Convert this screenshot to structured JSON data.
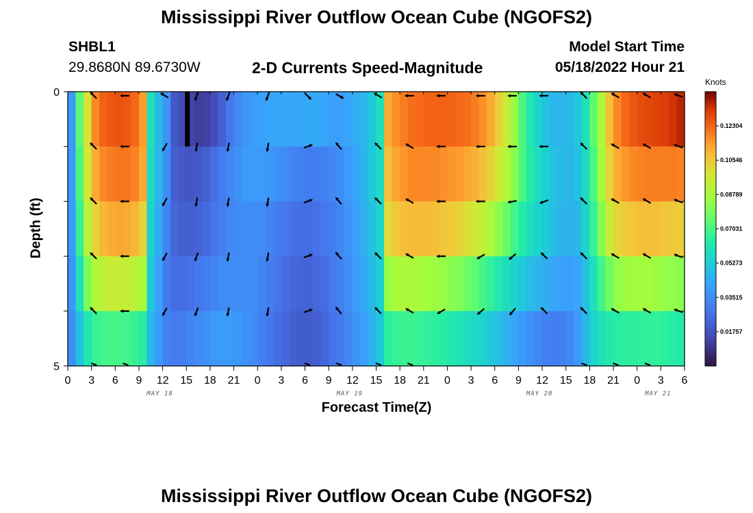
{
  "page_title": "Mississippi River Outflow Ocean Cube (NGOFS2)",
  "station": {
    "id": "SHBL1",
    "coords": "29.8680N  89.6730W"
  },
  "model_start": {
    "label": "Model Start Time",
    "value": "05/18/2022 Hour 21"
  },
  "bottom_title": "Mississippi River Outflow Ocean Cube (NGOFS2)",
  "colorbar": {
    "unit": "Knots",
    "ticks": [
      "0.12304",
      "0.10546",
      "0.08789",
      "0.07031",
      "0.05273",
      "0.03515",
      "0.01757"
    ],
    "tick_values": [
      0.12304,
      0.10546,
      0.08789,
      0.07031,
      0.05273,
      0.03515,
      0.01757
    ],
    "min": 0.0,
    "max": 0.1406
  },
  "chart_data": {
    "type": "heatmap",
    "title": "2-D Currents Speed-Magnitude",
    "xlabel": "Forecast Time(Z)",
    "ylabel": "Depth (ft)",
    "x_tick_labels": [
      "0",
      "3",
      "6",
      "9",
      "12",
      "15",
      "18",
      "21",
      "0",
      "3",
      "6",
      "9",
      "12",
      "15",
      "18",
      "21",
      "0",
      "3",
      "6",
      "9",
      "12",
      "15",
      "18",
      "21",
      "0",
      "3",
      "6"
    ],
    "date_labels": [
      {
        "text": "MAY 18",
        "tick_index": 4
      },
      {
        "text": "MAY 19",
        "tick_index": 12
      },
      {
        "text": "MAY 20",
        "tick_index": 20
      },
      {
        "text": "MAY 21",
        "tick_index": 25
      }
    ],
    "y_tick_labels": [
      "0",
      "",
      "",
      "",
      "",
      "5"
    ],
    "ylim": [
      0,
      5
    ],
    "xlim_hours": [
      0,
      78
    ],
    "depth_levels": 5,
    "time_steps": 78,
    "speed_knots_keyframes": {
      "hours": [
        0,
        1,
        2,
        3,
        4,
        5,
        6,
        7,
        8,
        9,
        10,
        11,
        12,
        13,
        14,
        15,
        16,
        17,
        18,
        19,
        20,
        21,
        22,
        23,
        24,
        25,
        26,
        27,
        28,
        29,
        30,
        31,
        32,
        33,
        34,
        35,
        36,
        37,
        38,
        39,
        40,
        41,
        42,
        43,
        44,
        45,
        46,
        47,
        48,
        49,
        50,
        51,
        52,
        53,
        54,
        55,
        56,
        57,
        58,
        59,
        60,
        61,
        62,
        63,
        64,
        65,
        66,
        67,
        68,
        69,
        70,
        71,
        72,
        73,
        74,
        75,
        76,
        77
      ],
      "layers": [
        [
          0.04,
          0.075,
          0.1,
          0.118,
          0.124,
          0.126,
          0.127,
          0.126,
          0.123,
          0.115,
          0.06,
          0.048,
          0.038,
          0.02,
          0.016,
          0.014,
          0.012,
          0.013,
          0.017,
          0.022,
          0.028,
          0.034,
          0.038,
          0.04,
          0.042,
          0.043,
          0.043,
          0.044,
          0.043,
          0.043,
          0.044,
          0.044,
          0.043,
          0.042,
          0.041,
          0.043,
          0.045,
          0.047,
          0.052,
          0.06,
          0.112,
          0.117,
          0.12,
          0.122,
          0.123,
          0.124,
          0.124,
          0.124,
          0.124,
          0.123,
          0.122,
          0.12,
          0.117,
          0.112,
          0.105,
          0.096,
          0.085,
          0.072,
          0.062,
          0.055,
          0.05,
          0.047,
          0.047,
          0.048,
          0.052,
          0.06,
          0.075,
          0.09,
          0.108,
          0.118,
          0.123,
          0.126,
          0.128,
          0.129,
          0.13,
          0.131,
          0.133,
          0.135
        ],
        [
          0.04,
          0.072,
          0.098,
          0.112,
          0.118,
          0.12,
          0.121,
          0.121,
          0.119,
          0.113,
          0.058,
          0.047,
          0.036,
          0.022,
          0.02,
          0.019,
          0.02,
          0.022,
          0.026,
          0.03,
          0.034,
          0.037,
          0.039,
          0.04,
          0.04,
          0.039,
          0.037,
          0.035,
          0.033,
          0.032,
          0.031,
          0.031,
          0.032,
          0.034,
          0.036,
          0.04,
          0.043,
          0.047,
          0.052,
          0.058,
          0.108,
          0.113,
          0.116,
          0.118,
          0.118,
          0.118,
          0.118,
          0.117,
          0.116,
          0.115,
          0.113,
          0.111,
          0.108,
          0.104,
          0.098,
          0.091,
          0.082,
          0.072,
          0.064,
          0.058,
          0.054,
          0.05,
          0.048,
          0.047,
          0.05,
          0.058,
          0.072,
          0.088,
          0.104,
          0.112,
          0.116,
          0.118,
          0.119,
          0.12,
          0.12,
          0.12,
          0.12,
          0.119
        ],
        [
          0.04,
          0.068,
          0.092,
          0.104,
          0.11,
          0.112,
          0.113,
          0.112,
          0.11,
          0.104,
          0.055,
          0.045,
          0.033,
          0.024,
          0.022,
          0.022,
          0.023,
          0.025,
          0.028,
          0.031,
          0.034,
          0.035,
          0.036,
          0.036,
          0.035,
          0.033,
          0.031,
          0.029,
          0.027,
          0.026,
          0.026,
          0.027,
          0.029,
          0.031,
          0.034,
          0.038,
          0.042,
          0.046,
          0.05,
          0.056,
          0.102,
          0.106,
          0.108,
          0.109,
          0.109,
          0.109,
          0.108,
          0.107,
          0.106,
          0.104,
          0.101,
          0.098,
          0.094,
          0.089,
          0.083,
          0.077,
          0.07,
          0.064,
          0.059,
          0.055,
          0.052,
          0.049,
          0.047,
          0.046,
          0.048,
          0.056,
          0.068,
          0.082,
          0.096,
          0.103,
          0.106,
          0.107,
          0.108,
          0.108,
          0.108,
          0.107,
          0.106,
          0.105
        ],
        [
          0.038,
          0.06,
          0.08,
          0.09,
          0.094,
          0.096,
          0.096,
          0.095,
          0.093,
          0.088,
          0.052,
          0.042,
          0.03,
          0.026,
          0.026,
          0.027,
          0.029,
          0.031,
          0.033,
          0.035,
          0.036,
          0.036,
          0.036,
          0.035,
          0.033,
          0.031,
          0.028,
          0.026,
          0.024,
          0.023,
          0.023,
          0.024,
          0.026,
          0.029,
          0.032,
          0.036,
          0.04,
          0.044,
          0.048,
          0.054,
          0.085,
          0.088,
          0.089,
          0.089,
          0.088,
          0.087,
          0.086,
          0.085,
          0.083,
          0.081,
          0.078,
          0.075,
          0.071,
          0.067,
          0.063,
          0.059,
          0.055,
          0.052,
          0.049,
          0.047,
          0.045,
          0.043,
          0.042,
          0.041,
          0.043,
          0.05,
          0.06,
          0.07,
          0.079,
          0.084,
          0.086,
          0.087,
          0.087,
          0.087,
          0.086,
          0.085,
          0.084,
          0.083
        ],
        [
          0.036,
          0.05,
          0.062,
          0.068,
          0.07,
          0.071,
          0.071,
          0.07,
          0.068,
          0.065,
          0.048,
          0.04,
          0.032,
          0.03,
          0.031,
          0.033,
          0.035,
          0.037,
          0.039,
          0.04,
          0.04,
          0.039,
          0.037,
          0.035,
          0.032,
          0.029,
          0.026,
          0.024,
          0.022,
          0.021,
          0.021,
          0.022,
          0.024,
          0.027,
          0.03,
          0.034,
          0.038,
          0.042,
          0.046,
          0.052,
          0.066,
          0.068,
          0.069,
          0.069,
          0.068,
          0.067,
          0.066,
          0.065,
          0.063,
          0.061,
          0.059,
          0.057,
          0.055,
          0.052,
          0.049,
          0.046,
          0.043,
          0.04,
          0.037,
          0.034,
          0.032,
          0.031,
          0.032,
          0.034,
          0.04,
          0.048,
          0.055,
          0.06,
          0.063,
          0.065,
          0.066,
          0.066,
          0.067,
          0.067,
          0.067,
          0.066,
          0.065,
          0.064
        ]
      ]
    },
    "arrow_hours": [
      4,
      8,
      13,
      17,
      21,
      26,
      31,
      35,
      40,
      44,
      48,
      53,
      57,
      61,
      66,
      70,
      74,
      78
    ],
    "arrow_directions_deg": [
      [
        315,
        270,
        300,
        200,
        200,
        200,
        135,
        120,
        300,
        270,
        270,
        270,
        270,
        270,
        315,
        300,
        300,
        290
      ],
      [
        315,
        270,
        210,
        190,
        190,
        190,
        70,
        320,
        315,
        300,
        270,
        270,
        270,
        270,
        315,
        300,
        300,
        290
      ],
      [
        315,
        270,
        210,
        190,
        190,
        190,
        70,
        320,
        315,
        300,
        270,
        270,
        260,
        250,
        315,
        300,
        300,
        290
      ],
      [
        315,
        270,
        210,
        200,
        190,
        190,
        70,
        320,
        315,
        300,
        270,
        240,
        230,
        315,
        315,
        300,
        300,
        290
      ],
      [
        315,
        270,
        210,
        200,
        190,
        190,
        70,
        320,
        315,
        300,
        240,
        230,
        220,
        315,
        315,
        300,
        300,
        290
      ]
    ]
  }
}
